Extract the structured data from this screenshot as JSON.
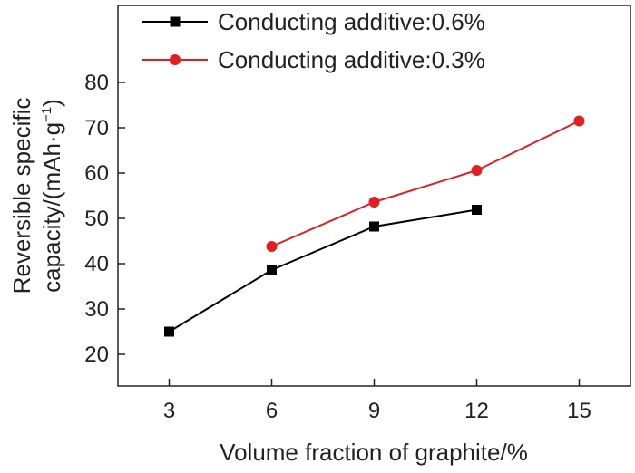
{
  "chart_data": {
    "type": "line",
    "xlabel": "Volume fraction of graphite/%",
    "ylabel_line1": "Reversible specific",
    "ylabel_line2_main": "capacity/(mAh·g",
    "ylabel_line2_sup": "−1",
    "ylabel_line2_end": ")",
    "xlim": [
      1.5,
      16.5
    ],
    "ylim": [
      13,
      97
    ],
    "xticks": [
      3,
      6,
      9,
      12,
      15
    ],
    "yticks": [
      20,
      30,
      40,
      50,
      60,
      70,
      80
    ],
    "x_tick_labels": [
      "3",
      "6",
      "9",
      "12",
      "15"
    ],
    "y_tick_labels": [
      "20",
      "30",
      "40",
      "50",
      "60",
      "70",
      "80"
    ],
    "grid": false,
    "legend_position": "top",
    "series": [
      {
        "name": "Conducting additive:0.6%",
        "marker": "square",
        "color": "#000000",
        "x": [
          3,
          6,
          9,
          12
        ],
        "y": [
          25.0,
          38.6,
          48.2,
          51.9
        ]
      },
      {
        "name": "Conducting additive:0.3%",
        "marker": "circle",
        "color": "#e02020",
        "x": [
          6,
          9,
          12,
          15
        ],
        "y": [
          43.8,
          53.6,
          60.6,
          71.5
        ]
      }
    ]
  }
}
